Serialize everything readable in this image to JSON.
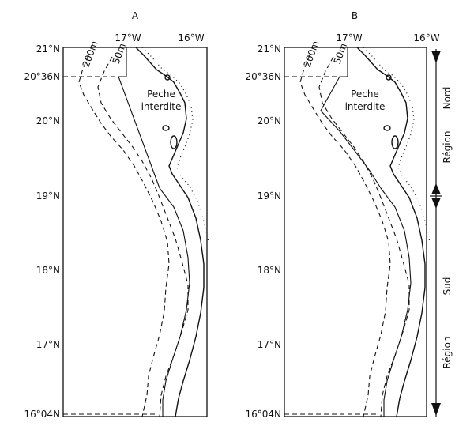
{
  "panels": [
    {
      "label": "A"
    },
    {
      "label": "B"
    }
  ],
  "latitudes": [
    "21°N",
    "20°36N",
    "20°N",
    "19°N",
    "18°N",
    "17°N",
    "16°04N"
  ],
  "longitudes": [
    "17°W",
    "16°W"
  ],
  "isobaths": [
    "200m",
    "50m"
  ],
  "zone_label": [
    "Peche",
    "interdite"
  ],
  "regions": {
    "north": [
      "Nord",
      "Région"
    ],
    "south": [
      "Sud",
      "Région"
    ]
  }
}
